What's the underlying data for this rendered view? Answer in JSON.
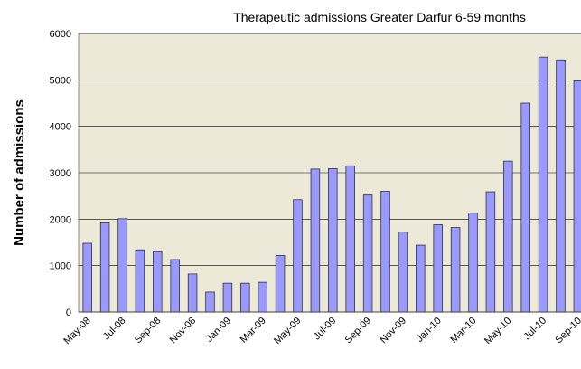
{
  "chart_data": {
    "type": "bar",
    "title": "Therapeutic admissions Greater Darfur 6-59 months",
    "y_label": "Number of admissions",
    "categories": [
      "May-08",
      null,
      "Jul-08",
      null,
      "Sep-08",
      null,
      "Nov-08",
      null,
      "Jan-09",
      null,
      "Mar-09",
      null,
      "May-09",
      null,
      "Jul-09",
      null,
      "Sep-09",
      null,
      "Nov-09",
      null,
      "Jan-10",
      null,
      "Mar-10",
      null,
      "May-10",
      null,
      "Jul-10",
      null,
      "Sep-10"
    ],
    "values": [
      1480,
      1920,
      2010,
      1340,
      1300,
      1130,
      820,
      430,
      620,
      620,
      640,
      1220,
      2420,
      3080,
      3090,
      3150,
      2520,
      2600,
      1720,
      1440,
      1880,
      1820,
      2130,
      2590,
      3250,
      4500,
      5490,
      5430,
      4980
    ],
    "color": "#9999ff",
    "ylim": [
      0,
      6000
    ],
    "yticks": [
      0,
      1000,
      2000,
      3000,
      4000,
      5000,
      6000
    ],
    "grid": true
  }
}
